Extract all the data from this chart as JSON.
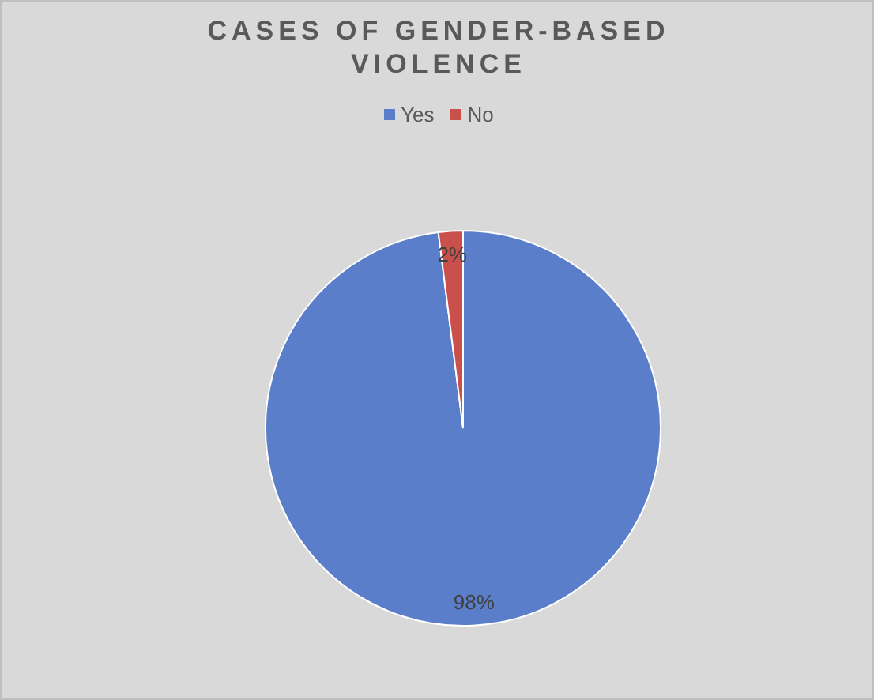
{
  "chart_data": {
    "type": "pie",
    "title": "CASES OF GENDER-BASED VIOLENCE",
    "categories": [
      "Yes",
      "No"
    ],
    "values": [
      98,
      2
    ],
    "value_labels": [
      "98%",
      "2%"
    ],
    "colors": [
      "#5a7ec9",
      "#c9504b"
    ],
    "legend": "top"
  }
}
